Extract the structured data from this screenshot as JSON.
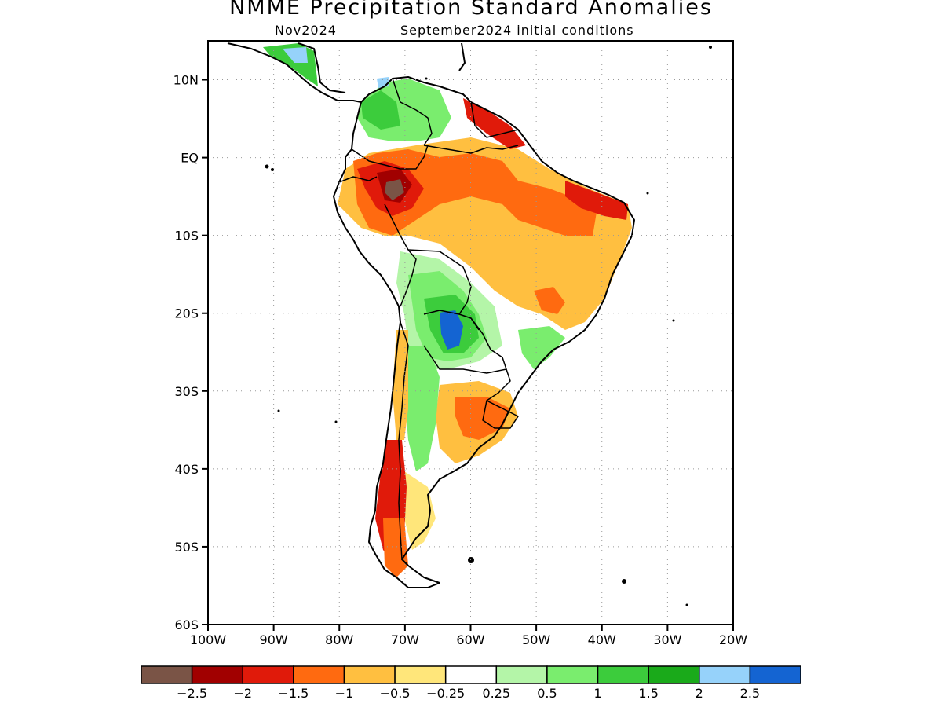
{
  "title": "NMME Precipitation Standard Anomalies",
  "subtitle_left": "Nov2024",
  "subtitle_right": "September2024 initial conditions",
  "map": {
    "lon_range": [
      -100,
      -20
    ],
    "lat_range": [
      -60,
      15
    ],
    "lat_ticks": [
      {
        "value": 10,
        "label": "10N"
      },
      {
        "value": 0,
        "label": "EQ"
      },
      {
        "value": -10,
        "label": "10S"
      },
      {
        "value": -20,
        "label": "20S"
      },
      {
        "value": -30,
        "label": "30S"
      },
      {
        "value": -40,
        "label": "40S"
      },
      {
        "value": -50,
        "label": "50S"
      },
      {
        "value": -60,
        "label": "60S"
      }
    ],
    "lon_ticks": [
      {
        "value": -100,
        "label": "100W"
      },
      {
        "value": -90,
        "label": "90W"
      },
      {
        "value": -80,
        "label": "80W"
      },
      {
        "value": -70,
        "label": "70W"
      },
      {
        "value": -60,
        "label": "60W"
      },
      {
        "value": -50,
        "label": "50W"
      },
      {
        "value": -40,
        "label": "40W"
      },
      {
        "value": -30,
        "label": "30W"
      },
      {
        "value": -20,
        "label": "20W"
      }
    ]
  },
  "colorbar": {
    "colors": [
      "#7a5446",
      "#a10000",
      "#e01a0a",
      "#ff6a10",
      "#ffbf40",
      "#ffe67a",
      "#ffffff",
      "#b4f5a8",
      "#7aed6e",
      "#3ccc3c",
      "#1aaa1a",
      "#96d2fa",
      "#1464d2"
    ],
    "labels": [
      "−2.5",
      "−2",
      "−1.5",
      "−1",
      "−0.5",
      "−0.25",
      "0.25",
      "0.5",
      "1",
      "1.5",
      "2",
      "2.5"
    ]
  }
}
